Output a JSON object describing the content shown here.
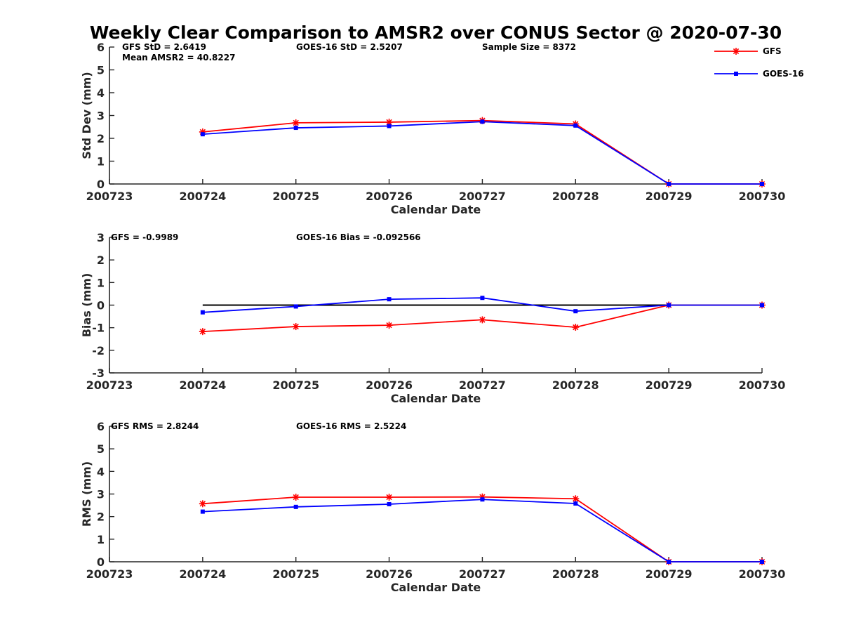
{
  "figure": {
    "title": "Weekly Clear Comparison to AMSR2 over CONUS Sector @ 2020-07-30"
  },
  "legend": {
    "placement": "top-right",
    "entries": [
      {
        "name": "GFS",
        "color": "#ff0000",
        "marker": "asterisk"
      },
      {
        "name": "GOES-16",
        "color": "#0000ff",
        "marker": "square"
      }
    ]
  },
  "chart_data": [
    {
      "type": "line",
      "xlabel": "Calendar Date",
      "ylabel": "Std Dev (mm)",
      "x": [
        "200723",
        "200724",
        "200725",
        "200726",
        "200727",
        "200728",
        "200729",
        "200730"
      ],
      "ylim": [
        0,
        6
      ],
      "yticks": [
        "0",
        "1",
        "2",
        "3",
        "4",
        "5",
        "6"
      ],
      "annotations": [
        "GFS StD = 2.6419",
        "Mean AMSR2 = 40.8227",
        "GOES-16 StD = 2.5207",
        "Sample Size = 8372"
      ],
      "series": [
        {
          "name": "GFS",
          "color": "#ff0000",
          "marker": "asterisk",
          "points": [
            [
              "200724",
              2.28
            ],
            [
              "200725",
              2.68
            ],
            [
              "200726",
              2.71
            ],
            [
              "200727",
              2.78
            ],
            [
              "200728",
              2.63
            ],
            [
              "200729",
              0
            ],
            [
              "200730",
              0
            ]
          ]
        },
        {
          "name": "GOES-16",
          "color": "#0000ff",
          "marker": "square",
          "points": [
            [
              "200724",
              2.18
            ],
            [
              "200725",
              2.46
            ],
            [
              "200726",
              2.54
            ],
            [
              "200727",
              2.73
            ],
            [
              "200728",
              2.56
            ],
            [
              "200729",
              0
            ],
            [
              "200730",
              0
            ]
          ]
        }
      ]
    },
    {
      "type": "line",
      "xlabel": "Calendar Date",
      "ylabel": "Bias (mm)",
      "x": [
        "200723",
        "200724",
        "200725",
        "200726",
        "200727",
        "200728",
        "200729",
        "200730"
      ],
      "ylim": [
        -3,
        3
      ],
      "yticks": [
        "-3",
        "-2",
        "-1",
        "0",
        "1",
        "2",
        "3"
      ],
      "reference_line": {
        "y": 0,
        "from": "200724",
        "to": "200730",
        "color": "#000000"
      },
      "annotations": [
        "GFS = -0.9989",
        "GOES-16 Bias  = -0.092566"
      ],
      "series": [
        {
          "name": "GFS",
          "color": "#ff0000",
          "marker": "asterisk",
          "points": [
            [
              "200724",
              -1.17
            ],
            [
              "200725",
              -0.95
            ],
            [
              "200726",
              -0.89
            ],
            [
              "200727",
              -0.65
            ],
            [
              "200728",
              -0.98
            ],
            [
              "200729",
              0
            ],
            [
              "200730",
              0
            ]
          ]
        },
        {
          "name": "GOES-16",
          "color": "#0000ff",
          "marker": "square",
          "points": [
            [
              "200724",
              -0.32
            ],
            [
              "200725",
              -0.06
            ],
            [
              "200726",
              0.26
            ],
            [
              "200727",
              0.32
            ],
            [
              "200728",
              -0.27
            ],
            [
              "200729",
              0
            ],
            [
              "200730",
              0
            ]
          ]
        }
      ]
    },
    {
      "type": "line",
      "xlabel": "Calendar Date",
      "ylabel": "RMS (mm)",
      "x": [
        "200723",
        "200724",
        "200725",
        "200726",
        "200727",
        "200728",
        "200729",
        "200730"
      ],
      "ylim": [
        0,
        6
      ],
      "yticks": [
        "0",
        "1",
        "2",
        "3",
        "4",
        "5",
        "6"
      ],
      "annotations": [
        "GFS RMS = 2.8244",
        "GOES-16 RMS = 2.5224"
      ],
      "series": [
        {
          "name": "GFS",
          "color": "#ff0000",
          "marker": "asterisk",
          "points": [
            [
              "200724",
              2.57
            ],
            [
              "200725",
              2.86
            ],
            [
              "200726",
              2.86
            ],
            [
              "200727",
              2.87
            ],
            [
              "200728",
              2.79
            ],
            [
              "200729",
              0
            ],
            [
              "200730",
              0
            ]
          ]
        },
        {
          "name": "GOES-16",
          "color": "#0000ff",
          "marker": "square",
          "points": [
            [
              "200724",
              2.22
            ],
            [
              "200725",
              2.43
            ],
            [
              "200726",
              2.55
            ],
            [
              "200727",
              2.76
            ],
            [
              "200728",
              2.58
            ],
            [
              "200729",
              0
            ],
            [
              "200730",
              0
            ]
          ]
        }
      ]
    }
  ]
}
